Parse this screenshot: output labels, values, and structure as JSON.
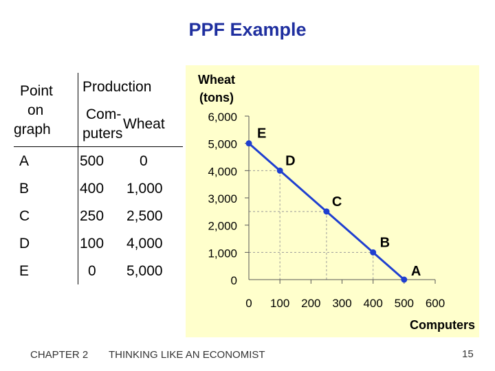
{
  "slide": {
    "title": "PPF Example",
    "footer_left": "CHAPTER 2",
    "footer_center": "THINKING LIKE AN ECONOMIST",
    "page_number": "15"
  },
  "table": {
    "header_point": [
      "Point",
      "on",
      "graph"
    ],
    "header_production": "Production",
    "header_computers": [
      "Com-",
      "puters"
    ],
    "header_wheat": "Wheat",
    "rows": [
      {
        "point": "A",
        "computers": "500",
        "wheat": "0"
      },
      {
        "point": "B",
        "computers": "400",
        "wheat": "1,000"
      },
      {
        "point": "C",
        "computers": "250",
        "wheat": "2,500"
      },
      {
        "point": "D",
        "computers": "100",
        "wheat": "4,000"
      },
      {
        "point": "E",
        "computers": "0",
        "wheat": "5,000"
      }
    ]
  },
  "colors": {
    "title": "#1f2f9f",
    "panel_bg": "#ffffcc",
    "line": "#1f3fd0",
    "guide": "#999999"
  },
  "chart_data": {
    "type": "line",
    "ylabel": [
      "Wheat",
      "(tons)"
    ],
    "xlabel": "Computers",
    "x_ticks": [
      "0",
      "100",
      "200",
      "300",
      "400",
      "500",
      "600"
    ],
    "x_tick_values": [
      0,
      100,
      200,
      300,
      400,
      500,
      600
    ],
    "y_ticks": [
      "0",
      "1,000",
      "2,000",
      "3,000",
      "4,000",
      "5,000",
      "6,000"
    ],
    "y_tick_values": [
      0,
      1000,
      2000,
      3000,
      4000,
      5000,
      6000
    ],
    "xlim": [
      0,
      600
    ],
    "ylim": [
      0,
      6000
    ],
    "points": [
      {
        "label": "E",
        "x": 0,
        "y": 5000
      },
      {
        "label": "D",
        "x": 100,
        "y": 4000
      },
      {
        "label": "C",
        "x": 250,
        "y": 2500
      },
      {
        "label": "B",
        "x": 400,
        "y": 1000
      },
      {
        "label": "A",
        "x": 500,
        "y": 0
      }
    ],
    "guide_lines": true
  }
}
